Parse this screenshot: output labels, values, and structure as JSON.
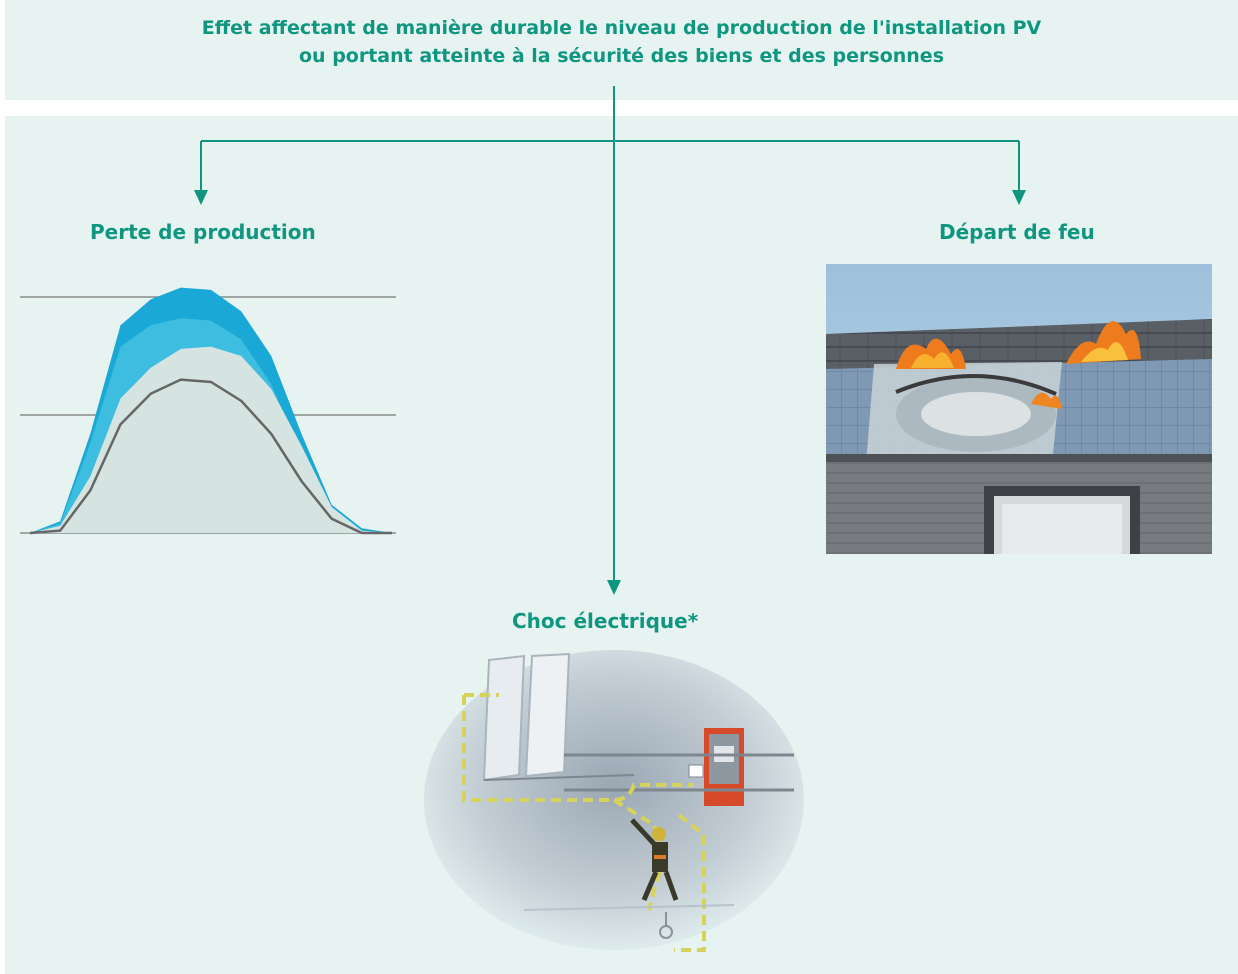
{
  "header": {
    "line1": "Effet affectant de manière durable le niveau de production de l'installation PV",
    "line2": "ou portant atteinte à la sécurité des biens et des personnes"
  },
  "branches": {
    "left": {
      "label": "Perte de production"
    },
    "right": {
      "label": "Départ de feu"
    },
    "center": {
      "label": "Choc électrique*"
    }
  },
  "colors": {
    "panel": "#e6f3f1",
    "accent": "#0f9680",
    "curve_outer": "#1aa8d6",
    "curve_inner": "#3dbde0",
    "curve_base": "#d5e4e1",
    "curve_line": "#666666",
    "gridline": "#777777"
  },
  "chart_data": {
    "type": "area",
    "title": "",
    "xlabel": "",
    "ylabel": "",
    "x": [
      0,
      1,
      2,
      3,
      4,
      5,
      6,
      7,
      8,
      9,
      10,
      11,
      12
    ],
    "ylim": [
      0,
      100
    ],
    "gridlines": [
      0,
      50,
      100
    ],
    "series": [
      {
        "values": [
          0,
          5,
          42,
          88,
          99,
          104,
          103,
          94,
          75,
          42,
          12,
          2,
          0
        ]
      },
      {
        "values": [
          0,
          4,
          38,
          79,
          88,
          91,
          90,
          82,
          63,
          33,
          9,
          1,
          0
        ]
      },
      {
        "values": [
          0,
          3,
          24,
          57,
          70,
          78,
          79,
          75,
          61,
          37,
          11,
          1,
          0
        ]
      },
      {
        "values": [
          0,
          1,
          18,
          46,
          59,
          65,
          64,
          56,
          42,
          22,
          6,
          0,
          0
        ]
      }
    ]
  }
}
